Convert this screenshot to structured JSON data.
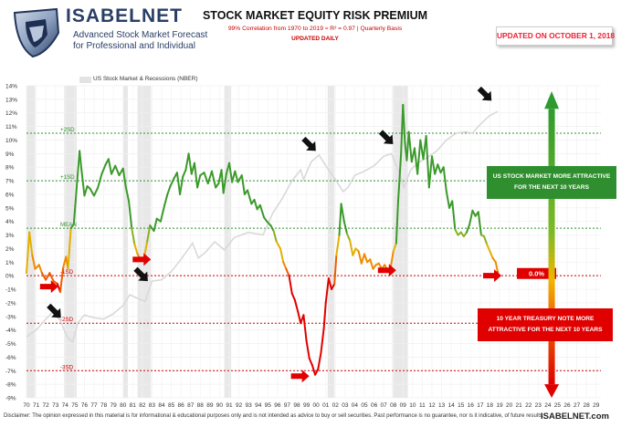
{
  "header": {
    "brand": "ISABELNET",
    "brand_sub1": "Advanced Stock Market Forecast",
    "brand_sub2": "for Professional and Individual",
    "title": "STOCK MARKET EQUITY RISK PREMIUM",
    "subtitle": "99% Correlation from 1970 to 2019 ≈ R² = 0.97 | Quarterly Basis",
    "subtitle2": "UPDATED DAILY",
    "updated": "UPDATED ON OCTOBER 1, 2018"
  },
  "legend": {
    "label": "US Stock Market & Recessions (NBER)"
  },
  "footer": {
    "disclaimer": "Disclaimer: The opinion expressed in this material is for informational & educational purposes only and is not intended as advice to buy or sell securities. Past performance is no guarantee, nor is it indicative, of future results.",
    "site": "ISABELNET.com"
  },
  "colors": {
    "green": "#3a9a2a",
    "red": "#e00000",
    "orange": "#f08a00",
    "grey_line": "#d9d9d9",
    "recession": "#e8e8e8",
    "brand": "#2a3f66"
  },
  "chart_data": {
    "type": "line",
    "title": "STOCK MARKET EQUITY RISK PREMIUM",
    "ylim": [
      -9,
      14
    ],
    "xlim": [
      1970,
      2029.5
    ],
    "y_ticks": [
      "-9%",
      "-8%",
      "-7%",
      "-6%",
      "-5%",
      "-4%",
      "-3%",
      "-2%",
      "-1%",
      "0%",
      "1%",
      "2%",
      "3%",
      "4%",
      "5%",
      "6%",
      "7%",
      "8%",
      "9%",
      "10%",
      "11%",
      "12%",
      "13%",
      "14%"
    ],
    "x_ticks": [
      "70",
      "71",
      "72",
      "73",
      "74",
      "75",
      "76",
      "77",
      "78",
      "79",
      "80",
      "81",
      "82",
      "83",
      "84",
      "85",
      "86",
      "87",
      "88",
      "89",
      "90",
      "91",
      "92",
      "93",
      "94",
      "95",
      "96",
      "97",
      "98",
      "99",
      "00",
      "01",
      "02",
      "03",
      "04",
      "05",
      "06",
      "07",
      "08",
      "09",
      "10",
      "11",
      "12",
      "13",
      "14",
      "15",
      "16",
      "17",
      "18",
      "19",
      "20",
      "21",
      "22",
      "23",
      "24",
      "25",
      "26",
      "27",
      "28",
      "29"
    ],
    "grid": true,
    "recessions": [
      [
        1970.0,
        1970.9
      ],
      [
        1973.9,
        1975.2
      ],
      [
        1980.0,
        1980.5
      ],
      [
        1981.5,
        1982.9
      ],
      [
        1990.5,
        1991.2
      ],
      [
        2001.2,
        2001.9
      ],
      [
        2007.9,
        2009.5
      ]
    ],
    "reference_lines": [
      {
        "label": "+2SD",
        "y": 10.5,
        "color": "#2f8f2f"
      },
      {
        "label": "+1SD",
        "y": 7.0,
        "color": "#2f8f2f"
      },
      {
        "label": "MEAN",
        "y": 3.5,
        "color": "#2f8f2f"
      },
      {
        "label": "-1SD",
        "y": 0.0,
        "color": "#d00000"
      },
      {
        "label": "-2SD",
        "y": -3.5,
        "color": "#d00000"
      },
      {
        "label": "-3SD",
        "y": -7.0,
        "color": "#d00000"
      }
    ],
    "series": [
      {
        "values": [
          [
            1970.0,
            0.2
          ],
          [
            1970.3,
            3.2
          ],
          [
            1970.6,
            1.5
          ],
          [
            1970.9,
            0.5
          ],
          [
            1971.3,
            0.8
          ],
          [
            1971.6,
            0.2
          ],
          [
            1972.0,
            -0.3
          ],
          [
            1972.4,
            0.2
          ],
          [
            1972.8,
            -0.4
          ],
          [
            1973.2,
            -0.6
          ],
          [
            1973.5,
            -1.2
          ],
          [
            1973.8,
            0.6
          ],
          [
            1974.1,
            1.4
          ],
          [
            1974.3,
            0.5
          ],
          [
            1974.6,
            3.5
          ],
          [
            1974.9,
            3.8
          ],
          [
            1975.2,
            6.5
          ],
          [
            1975.5,
            9.2
          ],
          [
            1975.7,
            7.8
          ],
          [
            1976.0,
            5.9
          ],
          [
            1976.3,
            6.6
          ],
          [
            1976.6,
            6.4
          ],
          [
            1977.0,
            5.9
          ],
          [
            1977.4,
            6.5
          ],
          [
            1977.8,
            7.5
          ],
          [
            1978.2,
            8.2
          ],
          [
            1978.5,
            8.6
          ],
          [
            1978.8,
            7.5
          ],
          [
            1979.2,
            8.1
          ],
          [
            1979.6,
            7.4
          ],
          [
            1980.0,
            7.9
          ],
          [
            1980.3,
            6.5
          ],
          [
            1980.6,
            5.5
          ],
          [
            1980.9,
            3.5
          ],
          [
            1981.2,
            2.3
          ],
          [
            1981.5,
            1.6
          ],
          [
            1981.8,
            1.2
          ],
          [
            1982.2,
            1.4
          ],
          [
            1982.5,
            2.5
          ],
          [
            1982.8,
            3.7
          ],
          [
            1983.2,
            3.3
          ],
          [
            1983.5,
            4.2
          ],
          [
            1983.9,
            4.0
          ],
          [
            1984.3,
            5.2
          ],
          [
            1984.6,
            6.0
          ],
          [
            1984.9,
            6.6
          ],
          [
            1985.3,
            7.2
          ],
          [
            1985.6,
            7.6
          ],
          [
            1985.9,
            6.0
          ],
          [
            1986.2,
            7.3
          ],
          [
            1986.5,
            7.8
          ],
          [
            1986.8,
            9.0
          ],
          [
            1987.1,
            7.5
          ],
          [
            1987.4,
            8.3
          ],
          [
            1987.7,
            6.5
          ],
          [
            1988.0,
            7.4
          ],
          [
            1988.4,
            7.6
          ],
          [
            1988.8,
            6.8
          ],
          [
            1989.2,
            7.7
          ],
          [
            1989.6,
            6.5
          ],
          [
            1989.9,
            6.8
          ],
          [
            1990.2,
            7.8
          ],
          [
            1990.4,
            6.1
          ],
          [
            1990.7,
            7.5
          ],
          [
            1991.0,
            8.3
          ],
          [
            1991.3,
            6.9
          ],
          [
            1991.6,
            7.7
          ],
          [
            1991.9,
            6.9
          ],
          [
            1992.3,
            7.4
          ],
          [
            1992.6,
            6.0
          ],
          [
            1992.9,
            6.3
          ],
          [
            1993.3,
            5.3
          ],
          [
            1993.6,
            5.6
          ],
          [
            1993.9,
            4.9
          ],
          [
            1994.2,
            5.2
          ],
          [
            1994.6,
            4.3
          ],
          [
            1994.9,
            4.0
          ],
          [
            1995.3,
            3.7
          ],
          [
            1995.6,
            3.3
          ],
          [
            1995.9,
            2.5
          ],
          [
            1996.3,
            2.0
          ],
          [
            1996.6,
            1.0
          ],
          [
            1996.9,
            0.5
          ],
          [
            1997.2,
            0.0
          ],
          [
            1997.5,
            -1.3
          ],
          [
            1997.8,
            -1.8
          ],
          [
            1998.1,
            -2.6
          ],
          [
            1998.4,
            -3.5
          ],
          [
            1998.7,
            -2.9
          ],
          [
            1999.0,
            -4.8
          ],
          [
            1999.3,
            -6.1
          ],
          [
            1999.6,
            -6.6
          ],
          [
            1999.9,
            -7.3
          ],
          [
            2000.2,
            -6.9
          ],
          [
            2000.5,
            -5.7
          ],
          [
            2000.8,
            -3.9
          ],
          [
            2001.0,
            -2.0
          ],
          [
            2001.3,
            -0.2
          ],
          [
            2001.6,
            -1.0
          ],
          [
            2001.9,
            -0.6
          ],
          [
            2002.1,
            1.5
          ],
          [
            2002.4,
            3.0
          ],
          [
            2002.6,
            5.3
          ],
          [
            2002.9,
            4.0
          ],
          [
            2003.2,
            3.1
          ],
          [
            2003.5,
            2.6
          ],
          [
            2003.8,
            1.5
          ],
          [
            2004.1,
            2.0
          ],
          [
            2004.4,
            1.8
          ],
          [
            2004.7,
            0.9
          ],
          [
            2005.0,
            1.6
          ],
          [
            2005.3,
            1.0
          ],
          [
            2005.6,
            1.2
          ],
          [
            2005.9,
            0.5
          ],
          [
            2006.2,
            0.8
          ],
          [
            2006.5,
            0.9
          ],
          [
            2006.8,
            0.5
          ],
          [
            2007.1,
            0.8
          ],
          [
            2007.4,
            0.4
          ],
          [
            2007.7,
            0.5
          ],
          [
            2008.0,
            1.8
          ],
          [
            2008.3,
            2.4
          ],
          [
            2008.5,
            5.5
          ],
          [
            2008.8,
            9.0
          ],
          [
            2009.0,
            12.6
          ],
          [
            2009.2,
            9.8
          ],
          [
            2009.4,
            8.5
          ],
          [
            2009.6,
            10.6
          ],
          [
            2009.9,
            8.4
          ],
          [
            2010.2,
            9.4
          ],
          [
            2010.5,
            7.5
          ],
          [
            2010.8,
            10.0
          ],
          [
            2011.1,
            8.6
          ],
          [
            2011.4,
            10.3
          ],
          [
            2011.7,
            6.5
          ],
          [
            2012.0,
            8.8
          ],
          [
            2012.3,
            7.5
          ],
          [
            2012.6,
            8.2
          ],
          [
            2012.9,
            7.6
          ],
          [
            2013.2,
            8.0
          ],
          [
            2013.5,
            6.2
          ],
          [
            2013.8,
            5.0
          ],
          [
            2014.1,
            5.5
          ],
          [
            2014.4,
            3.4
          ],
          [
            2014.7,
            3.0
          ],
          [
            2015.0,
            3.2
          ],
          [
            2015.3,
            2.9
          ],
          [
            2015.6,
            3.2
          ],
          [
            2015.9,
            3.8
          ],
          [
            2016.2,
            4.8
          ],
          [
            2016.5,
            4.4
          ],
          [
            2016.8,
            4.7
          ],
          [
            2017.1,
            3.0
          ],
          [
            2017.4,
            2.9
          ],
          [
            2017.7,
            2.3
          ],
          [
            2018.0,
            1.8
          ],
          [
            2018.3,
            1.3
          ],
          [
            2018.6,
            1.0
          ],
          [
            2018.8,
            0.3
          ],
          [
            2018.9,
            0.0
          ]
        ]
      },
      {
        "name": "US Stock Market & Recessions (NBER)",
        "values": [
          [
            1970.0,
            -4.5
          ],
          [
            1971.0,
            -4.0
          ],
          [
            1972.0,
            -3.2
          ],
          [
            1972.7,
            -2.7
          ],
          [
            1973.5,
            -3.3
          ],
          [
            1974.2,
            -4.5
          ],
          [
            1974.8,
            -4.9
          ],
          [
            1975.3,
            -3.5
          ],
          [
            1976.0,
            -2.9
          ],
          [
            1977.0,
            -3.1
          ],
          [
            1978.0,
            -3.2
          ],
          [
            1979.0,
            -2.8
          ],
          [
            1980.0,
            -2.2
          ],
          [
            1980.7,
            -1.4
          ],
          [
            1981.3,
            -1.6
          ],
          [
            1982.3,
            -1.9
          ],
          [
            1983.0,
            -0.4
          ],
          [
            1984.0,
            -0.3
          ],
          [
            1985.0,
            0.3
          ],
          [
            1986.0,
            1.2
          ],
          [
            1987.2,
            2.4
          ],
          [
            1987.8,
            1.3
          ],
          [
            1988.5,
            1.7
          ],
          [
            1989.5,
            2.5
          ],
          [
            1990.5,
            1.9
          ],
          [
            1991.5,
            2.8
          ],
          [
            1993.0,
            3.2
          ],
          [
            1994.5,
            3.0
          ],
          [
            1995.5,
            4.6
          ],
          [
            1996.5,
            5.7
          ],
          [
            1997.5,
            7.0
          ],
          [
            1998.4,
            7.8
          ],
          [
            1998.7,
            7.1
          ],
          [
            1999.5,
            8.4
          ],
          [
            2000.3,
            8.9
          ],
          [
            2001.0,
            8.1
          ],
          [
            2001.8,
            7.3
          ],
          [
            2002.8,
            6.2
          ],
          [
            2003.3,
            6.5
          ],
          [
            2004.0,
            7.4
          ],
          [
            2005.0,
            7.7
          ],
          [
            2006.0,
            8.1
          ],
          [
            2007.0,
            8.8
          ],
          [
            2007.8,
            9.0
          ],
          [
            2008.5,
            7.8
          ],
          [
            2009.1,
            6.5
          ],
          [
            2009.8,
            7.8
          ],
          [
            2010.5,
            8.3
          ],
          [
            2011.5,
            8.7
          ],
          [
            2012.5,
            9.2
          ],
          [
            2013.5,
            10.0
          ],
          [
            2014.5,
            10.5
          ],
          [
            2015.5,
            10.6
          ],
          [
            2016.2,
            10.5
          ],
          [
            2016.8,
            11.0
          ],
          [
            2017.5,
            11.5
          ],
          [
            2018.0,
            11.8
          ],
          [
            2018.8,
            12.1
          ]
        ]
      }
    ],
    "current_value_label": "0.0%",
    "annotations": [
      {
        "text": "US STOCK MARKET MORE ATTRACTIVE FOR THE NEXT 10 YEARS"
      },
      {
        "text": "10 YEAR TREASURY NOTE MORE ATTRACTIVE FOR THE NEXT 10 YEARS"
      }
    ]
  }
}
